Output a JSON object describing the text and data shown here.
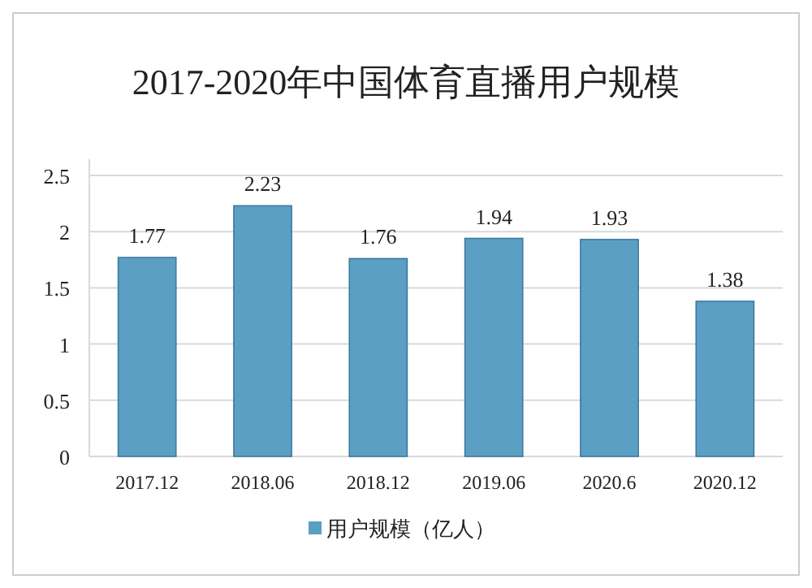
{
  "chart_data": {
    "type": "bar",
    "title": "2017-2020年中国体育直播用户规模",
    "categories": [
      "2017.12",
      "2018.06",
      "2018.12",
      "2019.06",
      "2020.6",
      "2020.12"
    ],
    "series": [
      {
        "name": "用户规模（亿人）",
        "color": "#5b9fc4",
        "values": [
          1.77,
          2.23,
          1.76,
          1.94,
          1.93,
          1.38
        ]
      }
    ],
    "ylim": [
      0,
      2.5
    ],
    "yticks": [
      0,
      0.5,
      1,
      1.5,
      2,
      2.5
    ],
    "grid": "y",
    "legend": "bottom",
    "data_labels": true
  }
}
